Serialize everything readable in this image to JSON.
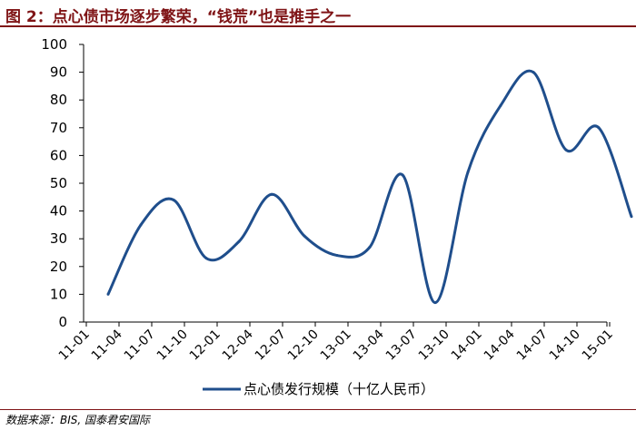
{
  "title": "图 2：点心债市场逐步繁荣，“钱荒”也是推手之一",
  "source": "数据来源：BIS, 国泰君安国际",
  "colors": {
    "line": "#1f4e8c",
    "title": "#7f1416",
    "axis": "#000000"
  },
  "chart_data": {
    "type": "line",
    "x_tick_labels": [
      "11-01",
      "11-04",
      "11-07",
      "11-10",
      "12-01",
      "12-04",
      "12-07",
      "12-10",
      "13-01",
      "13-04",
      "13-07",
      "13-10",
      "14-01",
      "14-04",
      "14-07",
      "14-10",
      "15-01"
    ],
    "ylim": [
      0,
      100
    ],
    "y_ticks": [
      0,
      10,
      20,
      30,
      40,
      50,
      60,
      70,
      80,
      90,
      100
    ],
    "grid": false,
    "legend_position": "bottom",
    "series": [
      {
        "name": "点心债发行规模（十亿人民币）",
        "x": [
          "11-03",
          "11-06",
          "11-09",
          "11-12",
          "12-03",
          "12-06",
          "12-09",
          "12-12",
          "13-03",
          "13-06",
          "13-09",
          "13-12",
          "14-03",
          "14-06",
          "14-09",
          "14-12",
          "15-03"
        ],
        "values": [
          10,
          35,
          44,
          23,
          29,
          46,
          31,
          24,
          27,
          53,
          7,
          54,
          78,
          90,
          62,
          70,
          38
        ]
      }
    ]
  }
}
